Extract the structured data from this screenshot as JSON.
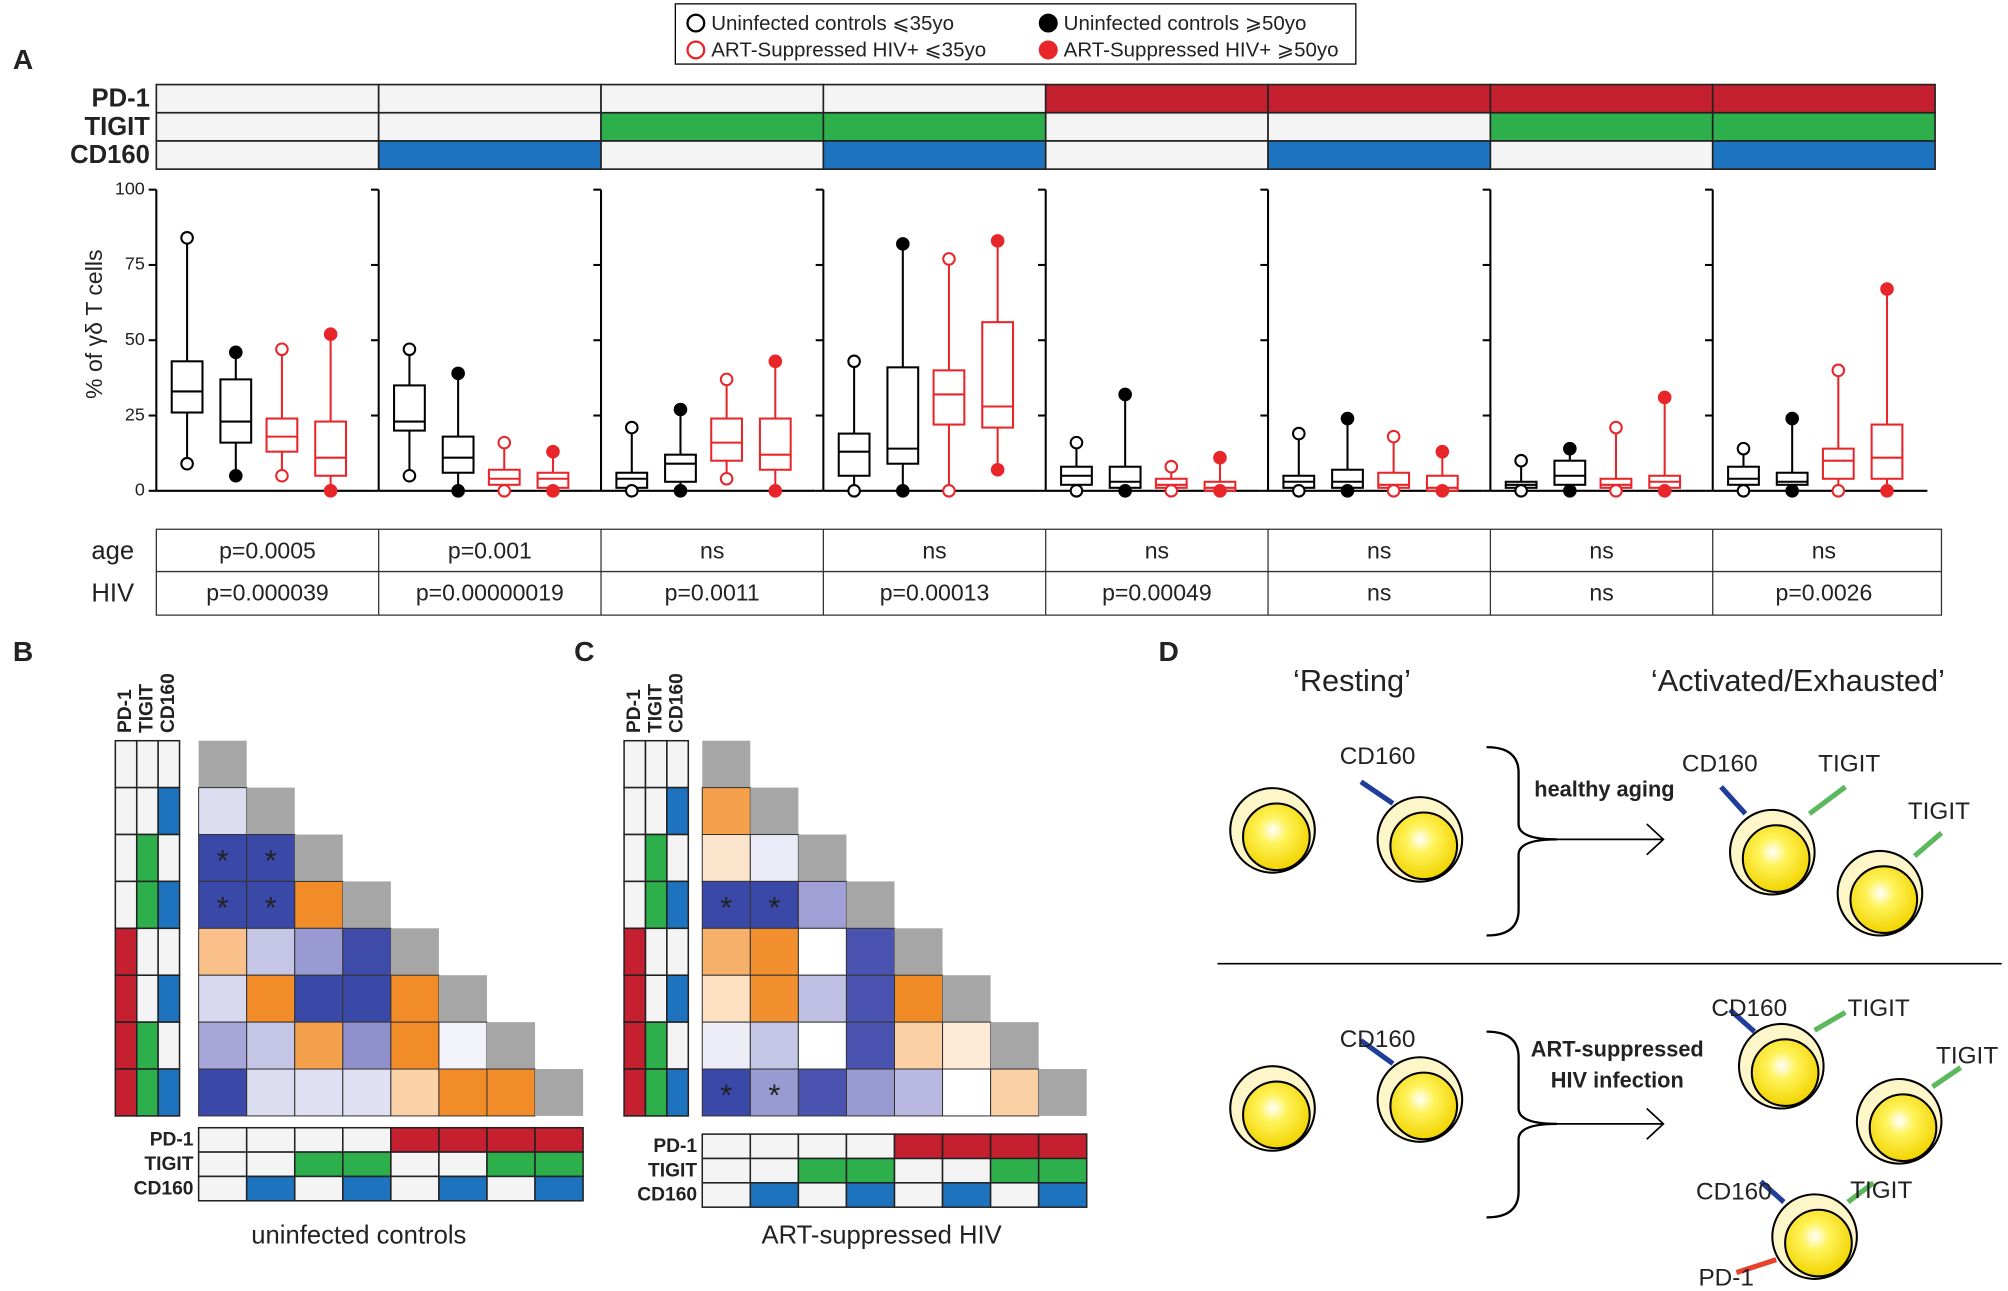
{
  "panel_labels": {
    "A": "A",
    "B": "B",
    "C": "C",
    "D": "D"
  },
  "chart_data": {
    "type": "box",
    "y_label": "% of γδ T cells",
    "ylim": [
      0,
      100
    ],
    "yticks": [
      0,
      25,
      50,
      75,
      100
    ],
    "markers": [
      "PD-1",
      "TIGIT",
      "CD160"
    ],
    "marker_colors": [
      "#c4202f",
      "#2db04b",
      "#1e73be"
    ],
    "marker_label_colors": [
      "#c4202f",
      "#2aa14a",
      "#3a4ea0"
    ],
    "phenotypes": [
      [
        0,
        0,
        0
      ],
      [
        0,
        0,
        1
      ],
      [
        0,
        1,
        0
      ],
      [
        0,
        1,
        1
      ],
      [
        1,
        0,
        0
      ],
      [
        1,
        0,
        1
      ],
      [
        1,
        1,
        0
      ],
      [
        1,
        1,
        1
      ]
    ],
    "series": [
      {
        "name": "Uninfected controls ⩽35yo",
        "color": "#000000",
        "style": "open",
        "values": [
          [
            9,
            26,
            33,
            43,
            84
          ],
          [
            5,
            20,
            23,
            35,
            47
          ],
          [
            0,
            1,
            4,
            6,
            21
          ],
          [
            0,
            5,
            13,
            19,
            43
          ],
          [
            0,
            2,
            5,
            8,
            16
          ],
          [
            0,
            1,
            3,
            5,
            19
          ],
          [
            0,
            1,
            2,
            3,
            10
          ],
          [
            0,
            2,
            4,
            8,
            14
          ]
        ]
      },
      {
        "name": "Uninfected controls ⩾50yo",
        "color": "#000000",
        "style": "filled",
        "values": [
          [
            5,
            16,
            23,
            37,
            46
          ],
          [
            0,
            6,
            11,
            18,
            39
          ],
          [
            0,
            3,
            9,
            12,
            27
          ],
          [
            0,
            9,
            14,
            41,
            82
          ],
          [
            0,
            1,
            3,
            8,
            32
          ],
          [
            0,
            1,
            3,
            7,
            24
          ],
          [
            0,
            2,
            5,
            10,
            14
          ],
          [
            0,
            2,
            3,
            6,
            24
          ]
        ]
      },
      {
        "name": "ART-Suppressed HIV+ ⩽35yo",
        "color": "#e8262a",
        "style": "open",
        "values": [
          [
            5,
            13,
            18,
            24,
            47
          ],
          [
            0,
            2,
            4,
            7,
            16
          ],
          [
            4,
            10,
            16,
            24,
            37
          ],
          [
            0,
            22,
            32,
            40,
            77
          ],
          [
            0,
            1,
            2,
            4,
            8
          ],
          [
            0,
            1,
            2,
            6,
            18
          ],
          [
            0,
            1,
            2,
            4,
            21
          ],
          [
            0,
            4,
            10,
            14,
            40
          ]
        ]
      },
      {
        "name": "ART-Suppressed HIV+ ⩾50yo",
        "color": "#e8262a",
        "style": "filled",
        "values": [
          [
            0,
            5,
            11,
            23,
            52
          ],
          [
            0,
            1,
            4,
            6,
            13
          ],
          [
            0,
            7,
            12,
            24,
            43
          ],
          [
            7,
            21,
            28,
            56,
            83
          ],
          [
            0,
            0,
            1,
            3,
            11
          ],
          [
            0,
            0,
            1,
            5,
            13
          ],
          [
            0,
            1,
            3,
            5,
            31
          ],
          [
            0,
            4,
            11,
            22,
            67
          ]
        ]
      }
    ],
    "stats": {
      "labels": [
        "age",
        "HIV"
      ],
      "rows": [
        [
          "p=0.0005",
          "p=0.001",
          "ns",
          "ns",
          "ns",
          "ns",
          "ns",
          "ns"
        ],
        [
          "p=0.000039",
          "p=0.00000019",
          "p=0.0011",
          "p=0.00013",
          "p=0.00049",
          "ns",
          "ns",
          "p=0.0026"
        ]
      ]
    }
  },
  "heatmaps": [
    {
      "title": "uninfected controls",
      "cells": [
        [],
        [
          {
            "color": "#dcdcf0"
          }
        ],
        [
          {
            "color": "#3a48a8",
            "label": "*"
          },
          {
            "color": "#3a48a8",
            "label": "*"
          }
        ],
        [
          {
            "color": "#3a48a8",
            "label": "*"
          },
          {
            "color": "#3a48a8",
            "label": "*"
          },
          {
            "color": "#f28c28"
          }
        ],
        [
          {
            "color": "#f9c08a"
          },
          {
            "color": "#c5c5e6"
          },
          {
            "color": "#9a9ad3"
          },
          {
            "color": "#3f4ba8"
          }
        ],
        [
          {
            "color": "#d8d8ee"
          },
          {
            "color": "#f28c28"
          },
          {
            "color": "#3a48a8"
          },
          {
            "color": "#3a48a8"
          },
          {
            "color": "#f28c28"
          }
        ],
        [
          {
            "color": "#a6a6d8"
          },
          {
            "color": "#c5c5e6"
          },
          {
            "color": "#f5a04a"
          },
          {
            "color": "#9090cc"
          },
          {
            "color": "#f28c28"
          },
          {
            "color": "#f2f2fa"
          }
        ],
        [
          {
            "color": "#3a48a8"
          },
          {
            "color": "#dcdcf0"
          },
          {
            "color": "#e0e0f2"
          },
          {
            "color": "#e0e0f2"
          },
          {
            "color": "#fbd2a8"
          },
          {
            "color": "#f28c28"
          },
          {
            "color": "#f28c28"
          }
        ]
      ]
    },
    {
      "title": "ART-suppressed HIV",
      "cells": [
        [],
        [
          {
            "color": "#f5a04a"
          }
        ],
        [
          {
            "color": "#fde4cc"
          },
          {
            "color": "#ebebf7"
          }
        ],
        [
          {
            "color": "#3a48a8",
            "label": "*"
          },
          {
            "color": "#3a48a8",
            "label": "*"
          },
          {
            "color": "#a0a0d6"
          }
        ],
        [
          {
            "color": "#f7b06a"
          },
          {
            "color": "#f29030"
          },
          {
            "color": "#ffffff"
          },
          {
            "color": "#4b53b0"
          }
        ],
        [
          {
            "color": "#fde0c2"
          },
          {
            "color": "#f29030"
          },
          {
            "color": "#c0c0e4"
          },
          {
            "color": "#4b53b0"
          },
          {
            "color": "#f08a25"
          }
        ],
        [
          {
            "color": "#ededf8"
          },
          {
            "color": "#c5c5e6"
          },
          {
            "color": "#ffffff"
          },
          {
            "color": "#4b53b0"
          },
          {
            "color": "#fbd0a5"
          },
          {
            "color": "#fdebd8"
          }
        ],
        [
          {
            "color": "#3a48a8",
            "label": "*"
          },
          {
            "color": "#9a9ad3",
            "label": "*"
          },
          {
            "color": "#4b53b0"
          },
          {
            "color": "#9a9ad3"
          },
          {
            "color": "#b8b8e0"
          },
          {
            "color": "#ffffff"
          },
          {
            "color": "#fbd0a5"
          }
        ]
      ]
    }
  ],
  "diagram": {
    "states": [
      "‘Resting’",
      "‘Activated/Exhausted’"
    ],
    "conditions": [
      [
        "healthy aging"
      ],
      [
        "ART-suppressed",
        "HIV infection"
      ]
    ]
  }
}
